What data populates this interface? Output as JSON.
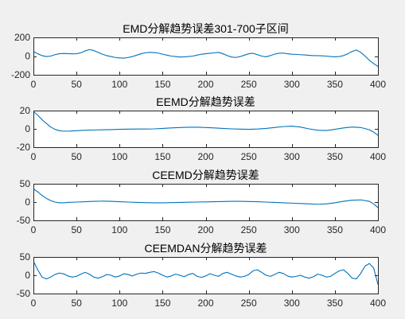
{
  "figure": {
    "background": "#f0f0f0",
    "line_color": "#0072bd"
  },
  "chart_data": [
    {
      "type": "line",
      "title": "EMD分解趋势误差301-700子区间",
      "xlim": [
        0,
        400
      ],
      "ylim": [
        -200,
        200
      ],
      "xticks": [
        0,
        50,
        100,
        150,
        200,
        250,
        300,
        350,
        400
      ],
      "yticks": [
        200,
        0,
        -200
      ],
      "grid": false,
      "series": [
        {
          "x": [
            0,
            5,
            10,
            15,
            20,
            25,
            30,
            35,
            40,
            45,
            50,
            55,
            60,
            65,
            70,
            75,
            80,
            85,
            90,
            95,
            100,
            105,
            110,
            115,
            120,
            125,
            130,
            135,
            140,
            145,
            150,
            155,
            160,
            165,
            170,
            175,
            180,
            185,
            190,
            195,
            200,
            205,
            210,
            215,
            220,
            225,
            230,
            235,
            240,
            245,
            250,
            255,
            260,
            265,
            270,
            275,
            280,
            285,
            290,
            295,
            300,
            305,
            310,
            315,
            320,
            325,
            330,
            335,
            340,
            345,
            350,
            355,
            360,
            365,
            370,
            375,
            380,
            385,
            390,
            395,
            400
          ],
          "y": [
            50,
            25,
            5,
            -5,
            0,
            15,
            25,
            28,
            26,
            24,
            25,
            35,
            55,
            70,
            60,
            40,
            20,
            5,
            -5,
            -15,
            -20,
            -22,
            -15,
            -5,
            10,
            25,
            35,
            40,
            38,
            32,
            20,
            10,
            0,
            -5,
            -10,
            -8,
            -5,
            0,
            10,
            20,
            25,
            30,
            35,
            40,
            25,
            5,
            -10,
            -15,
            -5,
            10,
            25,
            30,
            15,
            0,
            -8,
            5,
            20,
            30,
            32,
            25,
            20,
            18,
            15,
            12,
            8,
            5,
            5,
            3,
            0,
            -5,
            -8,
            -5,
            5,
            25,
            50,
            65,
            40,
            0,
            -45,
            -80,
            -110
          ]
        }
      ]
    },
    {
      "type": "line",
      "title": "EEMD分解趋势误差",
      "xlim": [
        0,
        400
      ],
      "ylim": [
        -20,
        20
      ],
      "xticks": [
        0,
        50,
        100,
        150,
        200,
        250,
        300,
        350,
        400
      ],
      "yticks": [
        20,
        0,
        -20
      ],
      "grid": false,
      "series": [
        {
          "x": [
            0,
            5,
            10,
            15,
            20,
            25,
            30,
            35,
            40,
            45,
            50,
            60,
            70,
            80,
            90,
            100,
            110,
            120,
            130,
            140,
            150,
            160,
            170,
            180,
            190,
            200,
            210,
            220,
            230,
            240,
            250,
            260,
            270,
            280,
            290,
            300,
            310,
            320,
            330,
            340,
            350,
            360,
            370,
            380,
            390,
            395,
            400
          ],
          "y": [
            19,
            15,
            10,
            6,
            2,
            -0.5,
            -2,
            -2.5,
            -2.5,
            -2.2,
            -2,
            -1.5,
            -1.2,
            -1,
            -0.8,
            -0.5,
            -0.3,
            -0.2,
            -0.2,
            0,
            0.5,
            1,
            1.5,
            1.8,
            1.8,
            1.5,
            1,
            0.5,
            0,
            -0.3,
            -0.5,
            -0.2,
            0.5,
            1.5,
            2.5,
            3,
            2,
            0,
            -1.5,
            -1.8,
            -0.5,
            1,
            2,
            1.5,
            -1,
            -3.5,
            -7
          ]
        }
      ]
    },
    {
      "type": "line",
      "title": "CEEMD分解趋势误差",
      "xlim": [
        0,
        400
      ],
      "ylim": [
        -50,
        50
      ],
      "xticks": [
        0,
        50,
        100,
        150,
        200,
        250,
        300,
        350,
        400
      ],
      "yticks": [
        50,
        0,
        -50
      ],
      "grid": false,
      "series": [
        {
          "x": [
            0,
            5,
            10,
            15,
            20,
            25,
            30,
            35,
            40,
            50,
            60,
            70,
            80,
            90,
            100,
            110,
            120,
            130,
            140,
            150,
            160,
            170,
            180,
            190,
            200,
            210,
            220,
            230,
            240,
            250,
            260,
            270,
            280,
            290,
            300,
            310,
            320,
            330,
            340,
            350,
            360,
            370,
            380,
            390,
            395,
            400
          ],
          "y": [
            36,
            28,
            18,
            10,
            4,
            0,
            -2,
            -2,
            -1,
            0,
            1,
            2,
            2.5,
            2,
            1,
            0,
            -1,
            -1.5,
            -2,
            -2,
            -1.5,
            -1,
            -0.5,
            0,
            0.5,
            1,
            1.5,
            2,
            2,
            1.5,
            1,
            0,
            -1,
            -2,
            -3,
            -4,
            -5,
            -6,
            -5,
            -2,
            2,
            5,
            6,
            2,
            -5,
            -15
          ]
        }
      ]
    },
    {
      "type": "line",
      "title": "CEEMDAN分解趋势误差",
      "xlim": [
        0,
        400
      ],
      "ylim": [
        -50,
        50
      ],
      "xticks": [
        0,
        50,
        100,
        150,
        200,
        250,
        300,
        350,
        400
      ],
      "yticks": [
        50,
        0,
        -50
      ],
      "grid": false,
      "series": [
        {
          "x": [
            0,
            5,
            10,
            15,
            20,
            25,
            30,
            35,
            40,
            45,
            50,
            55,
            60,
            65,
            70,
            75,
            80,
            85,
            90,
            95,
            100,
            105,
            110,
            115,
            120,
            125,
            130,
            135,
            140,
            145,
            150,
            155,
            160,
            165,
            170,
            175,
            180,
            185,
            190,
            195,
            200,
            205,
            210,
            215,
            220,
            225,
            230,
            235,
            240,
            245,
            250,
            255,
            260,
            265,
            270,
            275,
            280,
            285,
            290,
            295,
            300,
            305,
            310,
            315,
            320,
            325,
            330,
            335,
            340,
            345,
            350,
            355,
            360,
            365,
            370,
            375,
            380,
            385,
            390,
            395,
            400
          ],
          "y": [
            38,
            15,
            -5,
            -10,
            -5,
            2,
            6,
            4,
            -2,
            -5,
            -3,
            3,
            8,
            3,
            -5,
            -8,
            -4,
            2,
            0,
            -5,
            -2,
            4,
            2,
            -2,
            3,
            6,
            5,
            8,
            10,
            6,
            0,
            -5,
            -2,
            3,
            0,
            -4,
            2,
            5,
            -3,
            -6,
            -2,
            4,
            0,
            -3,
            5,
            8,
            3,
            -2,
            -5,
            -3,
            2,
            12,
            15,
            8,
            0,
            -3,
            2,
            8,
            5,
            -2,
            -5,
            -3,
            0,
            -5,
            -8,
            -4,
            3,
            0,
            -5,
            -3,
            5,
            12,
            15,
            5,
            -8,
            -10,
            5,
            25,
            32,
            20,
            -25
          ]
        }
      ]
    }
  ]
}
